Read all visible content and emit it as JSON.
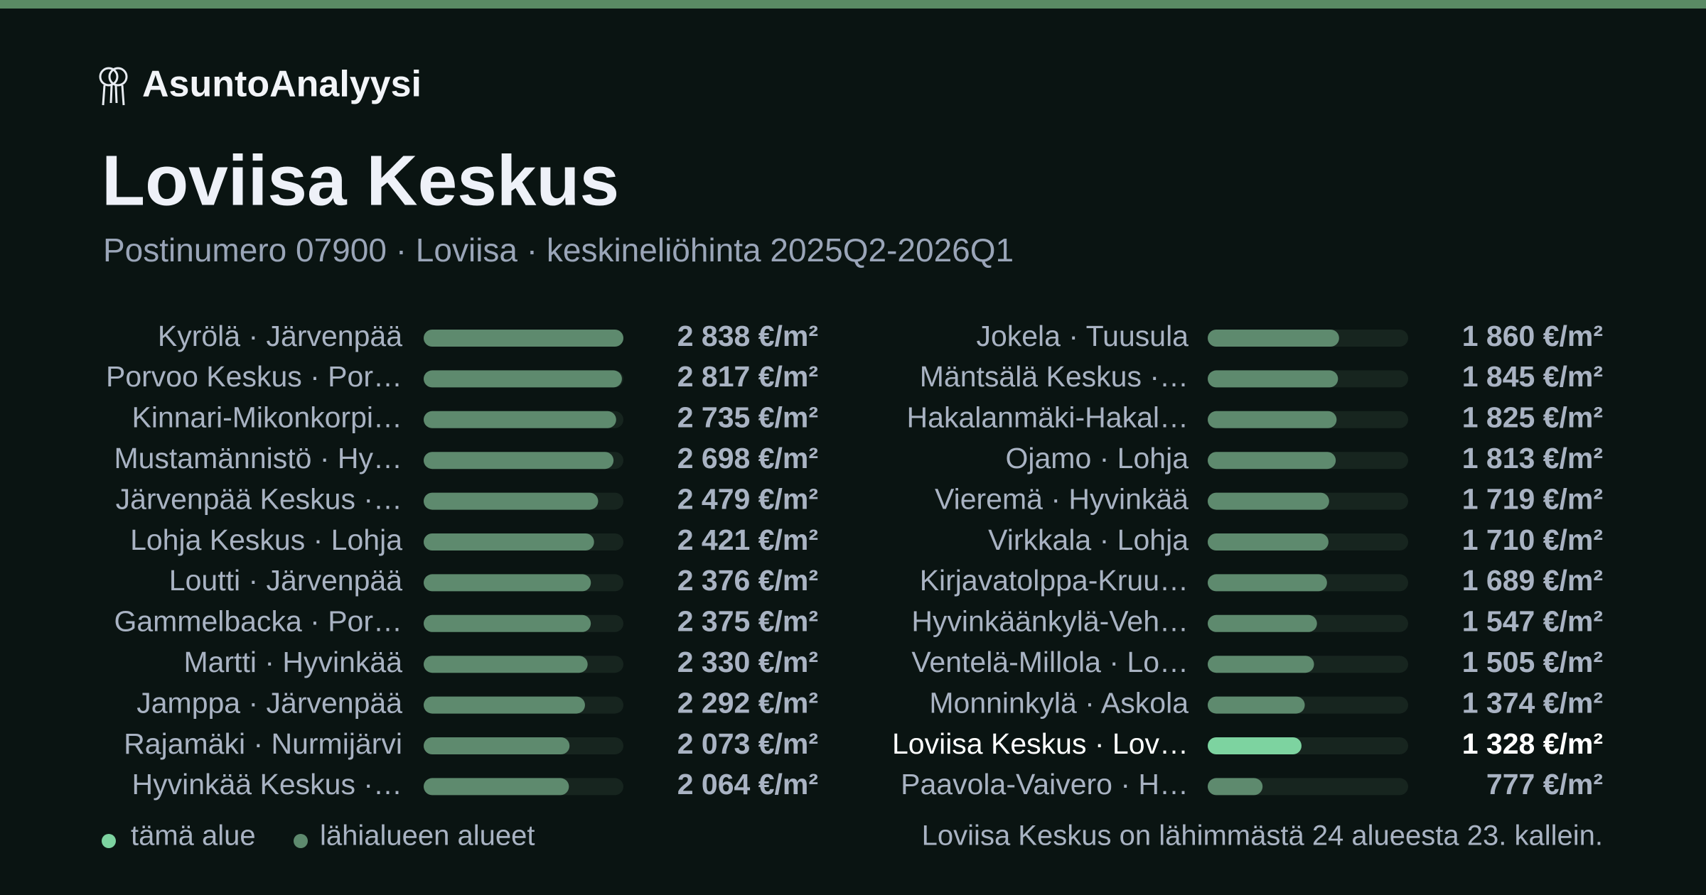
{
  "brand": "AsuntoAnalyysi",
  "title": "Loviisa Keskus",
  "subtitle": "Postinumero 07900 · Loviisa · keskineliöhinta 2025Q2-2026Q1",
  "chart_data": {
    "type": "bar",
    "categories": [
      "Kyrölä · Järvenpää",
      "Porvoo Keskus · Por…",
      "Kinnari-Mikonkorpi…",
      "Mustamännistö · Hy…",
      "Järvenpää Keskus ·…",
      "Lohja Keskus · Lohja",
      "Loutti · Järvenpää",
      "Gammelbacka · Por…",
      "Martti · Hyvinkää",
      "Jamppa · Järvenpää",
      "Rajamäki · Nurmijärvi",
      "Hyvinkää Keskus ·…",
      "Jokela · Tuusula",
      "Mäntsälä Keskus ·…",
      "Hakalanmäki-Hakal…",
      "Ojamo · Lohja",
      "Vieremä · Hyvinkää",
      "Virkkala · Lohja",
      "Kirjavatolppa-Kruu…",
      "Hyvinkäänkylä-Veh…",
      "Ventelä-Millola · Lo…",
      "Monninkylä · Askola",
      "Loviisa Keskus · Lov…",
      "Paavola-Vaivero · H…"
    ],
    "values": [
      2838,
      2817,
      2735,
      2698,
      2479,
      2421,
      2376,
      2375,
      2330,
      2292,
      2073,
      2064,
      1860,
      1845,
      1825,
      1813,
      1719,
      1710,
      1689,
      1547,
      1505,
      1374,
      1328,
      777
    ],
    "value_labels": [
      "2 838 €/m²",
      "2 817 €/m²",
      "2 735 €/m²",
      "2 698 €/m²",
      "2 479 €/m²",
      "2 421 €/m²",
      "2 376 €/m²",
      "2 375 €/m²",
      "2 330 €/m²",
      "2 292 €/m²",
      "2 073 €/m²",
      "2 064 €/m²",
      "1 860 €/m²",
      "1 845 €/m²",
      "1 825 €/m²",
      "1 813 €/m²",
      "1 719 €/m²",
      "1 710 €/m²",
      "1 689 €/m²",
      "1 547 €/m²",
      "1 505 €/m²",
      "1 374 €/m²",
      "1 328 €/m²",
      "777 €/m²"
    ],
    "colors": [
      "#5e8a6e",
      "#5e8a6e",
      "#5e8a6e",
      "#5e8a6e",
      "#5e8a6e",
      "#5e8a6e",
      "#5e8a6e",
      "#5e8a6e",
      "#5e8a6e",
      "#5e8a6e",
      "#5e8a6e",
      "#5e8a6e",
      "#5e8a6e",
      "#5e8a6e",
      "#5e8a6e",
      "#5e8a6e",
      "#5e8a6e",
      "#5e8a6e",
      "#5e8a6e",
      "#5e8a6e",
      "#5e8a6e",
      "#5e8a6e",
      "#7dd3a0",
      "#5e8a6e"
    ],
    "legend": [
      {
        "label": "tämä alue",
        "color": "#7dd3a0"
      },
      {
        "label": "lähialueen alueet",
        "color": "#5e8a6e"
      }
    ],
    "note": "Loviisa Keskus on lähimmästä 24 alueesta 23. kallein."
  }
}
